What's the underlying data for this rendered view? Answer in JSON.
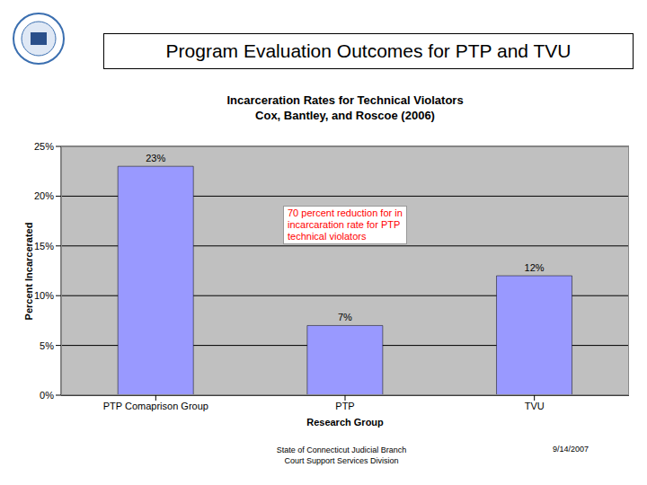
{
  "header": {
    "title": "Program Evaluation Outcomes for PTP and TVU"
  },
  "footer": {
    "lines": [
      "State of Connecticut Judicial Branch",
      "Court Support Services Division"
    ],
    "date": "9/14/2007"
  },
  "chart_data": {
    "type": "bar",
    "title": "Incarceration Rates for Technical Violators",
    "subtitle": "Cox, Bantley, and Roscoe (2006)",
    "x_label": "Research Group",
    "y_label": "Percent Incarcerated",
    "categories": [
      "PTP Comaprison Group",
      "PTP",
      "TVU"
    ],
    "values": [
      23,
      7,
      12
    ],
    "value_labels": [
      "23%",
      "7%",
      "12%"
    ],
    "data_labels": true,
    "color": "#9999ff",
    "ylim": [
      0,
      25
    ],
    "yticks": [
      {
        "value": 0,
        "label": "0%"
      },
      {
        "value": 5,
        "label": "5%"
      },
      {
        "value": 10,
        "label": "10%"
      },
      {
        "value": 15,
        "label": "15%"
      },
      {
        "value": 20,
        "label": "20%"
      },
      {
        "value": 25,
        "label": "25%"
      }
    ],
    "grid": true,
    "annotations": [
      "70 percent reduction for in",
      "incarcaration rate for PTP",
      "technical violators"
    ]
  }
}
